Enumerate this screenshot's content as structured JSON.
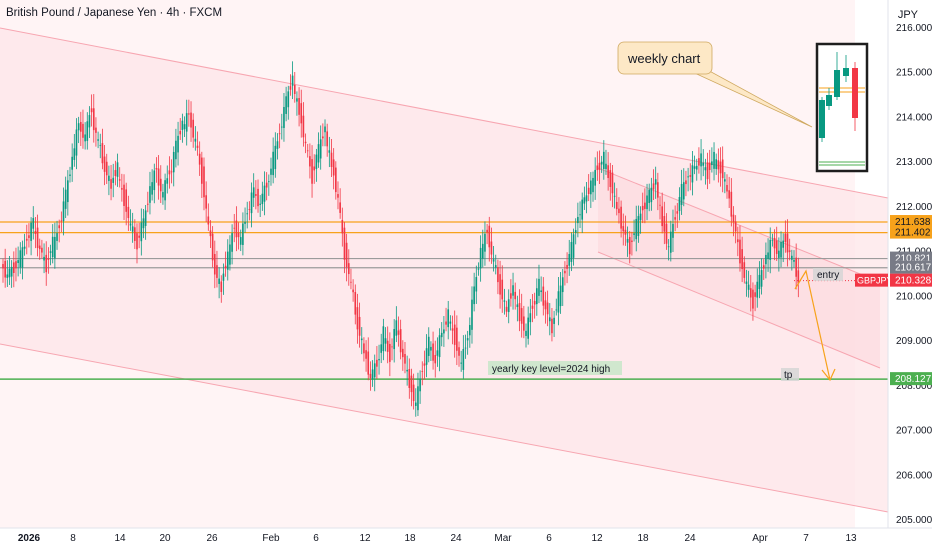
{
  "chart_data": {
    "type": "candlestick",
    "title": "British Pound / Japanese Yen · 4h · FXCM",
    "symbol": "GBPJPY",
    "unit": "JPY",
    "y_range": [
      204.8,
      216.6
    ],
    "y_ticks": [
      "216.000",
      "215.000",
      "214.000",
      "213.000",
      "212.000",
      "211.000",
      "210.000",
      "209.000",
      "208.000",
      "207.000",
      "206.000",
      "205.000"
    ],
    "y_tick_values": [
      216,
      215,
      214,
      213,
      212,
      211,
      210,
      209,
      208,
      207,
      206,
      205
    ],
    "x_ticks": [
      "2026",
      "8",
      "14",
      "20",
      "26",
      "Feb",
      "6",
      "12",
      "18",
      "24",
      "Mar",
      "6",
      "12",
      "18",
      "24",
      "Apr",
      "7",
      "13"
    ],
    "price_levels": [
      {
        "value": 211.638,
        "label": "211.638",
        "color": "#f7a21b"
      },
      {
        "value": 211.402,
        "label": "211.402",
        "color": "#f7a21b"
      },
      {
        "value": 210.821,
        "label": "210.821",
        "color": "#9b9b9b"
      },
      {
        "value": 210.617,
        "label": "210.617",
        "color": "#9b9b9b"
      },
      {
        "value": 208.127,
        "label": "208.127",
        "color": "#4caf50"
      }
    ],
    "current_price": {
      "label": "GBPJPY",
      "value": "210.328",
      "color": "#f23645"
    },
    "annotations": {
      "weekly_chart": "weekly chart",
      "yearly_key_level": "yearly key level=2024  high",
      "entry": "entry",
      "tp": "tp"
    },
    "price_path": [
      [
        210.7,
        210.4
      ],
      [
        210.5,
        210.6
      ],
      [
        210.6,
        210.9
      ],
      [
        210.8,
        211.3
      ],
      [
        211.2,
        211.7
      ],
      [
        211.5,
        211.0
      ],
      [
        211.1,
        210.6
      ],
      [
        210.7,
        211.2
      ],
      [
        211.0,
        211.6
      ],
      [
        211.5,
        212.3
      ],
      [
        212.2,
        213.1
      ],
      [
        213.0,
        213.9
      ],
      [
        213.8,
        213.5
      ],
      [
        213.6,
        214.2
      ],
      [
        214.0,
        213.4
      ],
      [
        213.5,
        212.8
      ],
      [
        212.9,
        212.4
      ],
      [
        212.5,
        212.9
      ],
      [
        212.7,
        212.1
      ],
      [
        212.2,
        211.5
      ],
      [
        211.6,
        211.1
      ],
      [
        211.2,
        211.7
      ],
      [
        211.6,
        212.4
      ],
      [
        212.3,
        212.9
      ],
      [
        212.7,
        212.2
      ],
      [
        212.3,
        212.8
      ],
      [
        212.6,
        213.4
      ],
      [
        213.3,
        213.9
      ],
      [
        213.7,
        214.1
      ],
      [
        214.0,
        213.4
      ],
      [
        213.5,
        212.6
      ],
      [
        212.7,
        211.5
      ],
      [
        211.6,
        210.5
      ],
      [
        210.6,
        210.1
      ],
      [
        210.3,
        210.9
      ],
      [
        210.8,
        211.6
      ],
      [
        211.5,
        211.2
      ],
      [
        211.3,
        211.9
      ],
      [
        211.8,
        212.4
      ],
      [
        212.3,
        212.0
      ],
      [
        212.1,
        212.5
      ],
      [
        212.4,
        213.1
      ],
      [
        213.0,
        213.7
      ],
      [
        213.6,
        214.4
      ],
      [
        214.3,
        214.9
      ],
      [
        214.7,
        214.1
      ],
      [
        214.2,
        213.3
      ],
      [
        213.4,
        212.6
      ],
      [
        212.7,
        213.3
      ],
      [
        213.2,
        213.8
      ],
      [
        213.6,
        212.9
      ],
      [
        213.0,
        212.1
      ],
      [
        212.2,
        210.9
      ],
      [
        211.0,
        210.2
      ],
      [
        210.3,
        209.3
      ],
      [
        209.4,
        208.7
      ],
      [
        208.8,
        208.1
      ],
      [
        208.2,
        208.5
      ],
      [
        208.4,
        209.2
      ],
      [
        209.1,
        208.6
      ],
      [
        208.7,
        209.4
      ],
      [
        209.3,
        208.6
      ],
      [
        208.7,
        208.0
      ],
      [
        208.1,
        207.5
      ],
      [
        207.6,
        208.4
      ],
      [
        208.3,
        209.0
      ],
      [
        208.9,
        208.5
      ],
      [
        208.6,
        209.2
      ],
      [
        209.1,
        209.6
      ],
      [
        209.5,
        209.0
      ],
      [
        209.1,
        208.4
      ],
      [
        208.5,
        209.1
      ],
      [
        209.0,
        210.2
      ],
      [
        210.1,
        211.0
      ],
      [
        210.9,
        211.5
      ],
      [
        211.4,
        210.7
      ],
      [
        210.8,
        210.1
      ],
      [
        210.2,
        209.6
      ],
      [
        209.7,
        210.2
      ],
      [
        210.1,
        209.5
      ],
      [
        209.6,
        209.1
      ],
      [
        209.2,
        209.8
      ],
      [
        209.7,
        210.3
      ],
      [
        210.2,
        209.7
      ],
      [
        209.8,
        209.2
      ],
      [
        209.3,
        210.0
      ],
      [
        209.9,
        210.6
      ],
      [
        210.5,
        211.1
      ],
      [
        211.0,
        211.8
      ],
      [
        211.7,
        212.2
      ],
      [
        212.1,
        212.5
      ],
      [
        212.4,
        212.9
      ],
      [
        212.8,
        213.1
      ],
      [
        213.0,
        212.5
      ],
      [
        212.6,
        211.9
      ],
      [
        212.0,
        211.4
      ],
      [
        211.5,
        211.0
      ],
      [
        211.1,
        211.6
      ],
      [
        211.5,
        212.0
      ],
      [
        211.9,
        212.3
      ],
      [
        212.2,
        212.6
      ],
      [
        212.5,
        211.6
      ],
      [
        211.7,
        211.0
      ],
      [
        211.1,
        211.8
      ],
      [
        211.7,
        212.4
      ],
      [
        212.3,
        212.7
      ],
      [
        212.6,
        212.9
      ],
      [
        212.8,
        213.1
      ],
      [
        213.0,
        212.7
      ],
      [
        212.8,
        213.1
      ],
      [
        213.0,
        212.8
      ],
      [
        212.9,
        212.3
      ],
      [
        212.4,
        211.6
      ],
      [
        211.7,
        210.8
      ],
      [
        210.9,
        210.2
      ],
      [
        210.3,
        209.8
      ],
      [
        209.9,
        210.4
      ],
      [
        210.3,
        210.9
      ],
      [
        210.8,
        211.3
      ],
      [
        211.2,
        210.9
      ],
      [
        211.0,
        211.3
      ],
      [
        211.2,
        210.8
      ],
      [
        210.9,
        210.3
      ]
    ]
  }
}
